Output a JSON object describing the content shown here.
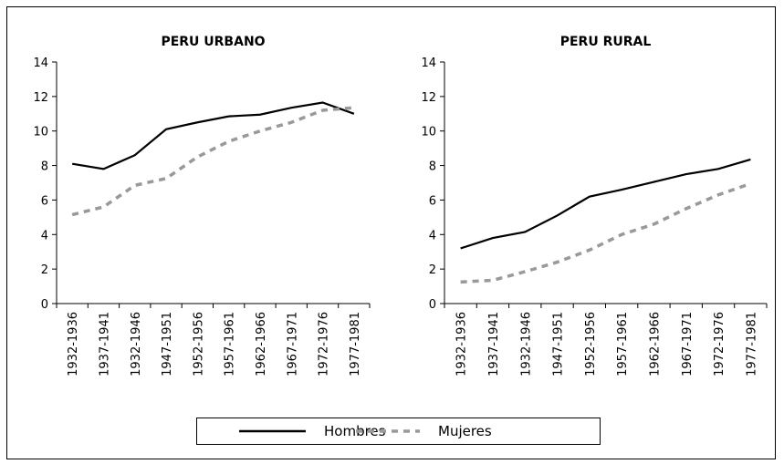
{
  "chart_data": [
    {
      "type": "line",
      "title": "PERU URBANO",
      "categories": [
        "1932-1936",
        "1937-1941",
        "1932-1946",
        "1947-1951",
        "1952-1956",
        "1957-1961",
        "1962-1966",
        "1967-1971",
        "1972-1976",
        "1977-1981"
      ],
      "series": [
        {
          "name": "Hombres",
          "color": "#000000",
          "line_style": "solid",
          "values": [
            8.1,
            7.8,
            8.6,
            10.1,
            10.5,
            10.85,
            10.95,
            11.35,
            11.65,
            11.0
          ]
        },
        {
          "name": "Mujeres",
          "color": "#999999",
          "line_style": "dashed",
          "values": [
            5.15,
            5.6,
            6.85,
            7.25,
            8.5,
            9.4,
            10.0,
            10.5,
            11.2,
            11.35
          ]
        }
      ],
      "ylim": [
        0,
        14
      ],
      "yticks": [
        0,
        2,
        4,
        6,
        8,
        10,
        12,
        14
      ]
    },
    {
      "type": "line",
      "title": "PERU RURAL",
      "categories": [
        "1932-1936",
        "1937-1941",
        "1932-1946",
        "1947-1951",
        "1952-1956",
        "1957-1961",
        "1962-1966",
        "1967-1971",
        "1972-1976",
        "1977-1981"
      ],
      "series": [
        {
          "color": "#000000",
          "line_style": "solid",
          "values": [
            3.2,
            3.8,
            4.15,
            5.1,
            6.2,
            6.6,
            7.05,
            7.5,
            7.8,
            8.35
          ]
        },
        {
          "color": "#999999",
          "line_style": "dashed",
          "values": [
            1.25,
            1.35,
            1.85,
            2.4,
            3.1,
            4.0,
            4.6,
            5.5,
            6.3,
            6.95
          ]
        }
      ],
      "ylim": [
        0,
        14
      ],
      "yticks": [
        0,
        2,
        4,
        6,
        8,
        10,
        12,
        14
      ]
    }
  ]
}
